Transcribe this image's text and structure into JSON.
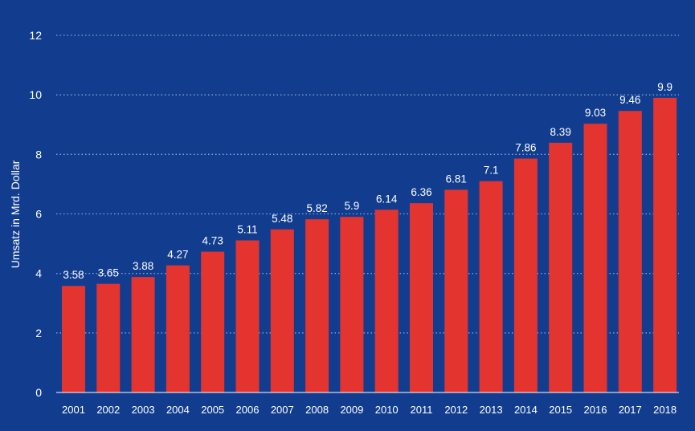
{
  "colors": {
    "background": "#123d8f",
    "bar": "#e3342f",
    "text": "#ffffff",
    "grid": "#8aa2d6",
    "axis": "#ffffff"
  },
  "chart_data": {
    "type": "bar",
    "title": "",
    "xlabel": "",
    "ylabel": "Umsatz in Mrd. Dollar",
    "ylim": [
      0,
      12
    ],
    "yticks": [
      "0",
      "2",
      "4",
      "6",
      "8",
      "10",
      "12"
    ],
    "grid": true,
    "categories": [
      "2001",
      "2002",
      "2003",
      "2004",
      "2005",
      "2006",
      "2007",
      "2008",
      "2009",
      "2010",
      "2011",
      "2012",
      "2013",
      "2014",
      "2015",
      "2016",
      "2017",
      "2018"
    ],
    "values": [
      3.58,
      3.65,
      3.88,
      4.27,
      4.73,
      5.11,
      5.48,
      5.82,
      5.9,
      6.14,
      6.36,
      6.81,
      7.1,
      7.86,
      8.39,
      9.03,
      9.46,
      9.9
    ],
    "value_labels": [
      "3.58",
      "3.65",
      "3.88",
      "4.27",
      "4.73",
      "5.11",
      "5.48",
      "5.82",
      "5.9",
      "6.14",
      "6.36",
      "6.81",
      "7.1",
      "7.86",
      "8.39",
      "9.03",
      "9.46",
      "9.9"
    ]
  }
}
